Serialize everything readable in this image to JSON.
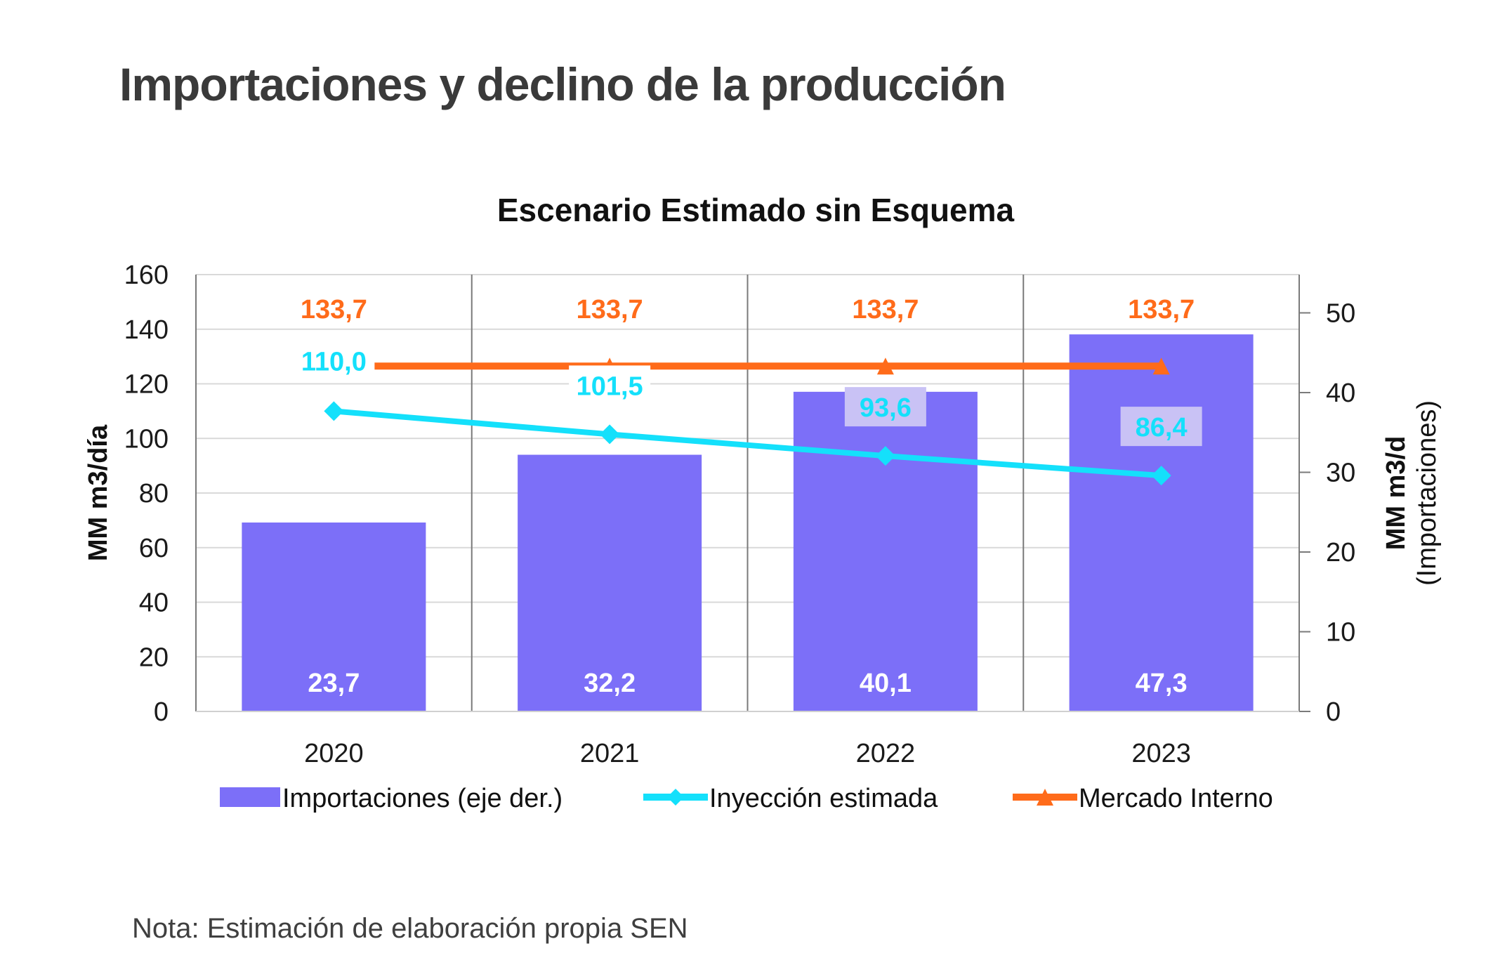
{
  "page": {
    "title": "Importaciones y declino de la producción",
    "note": "Nota: Estimación de elaboración propia SEN"
  },
  "colors": {
    "bars": "#7c6ff8",
    "inyeccion": "#14e0fb",
    "mercado": "#ff6b1a",
    "label_bg": "#c9c2f5"
  },
  "chart_data": {
    "type": "bar",
    "title": "Escenario Estimado sin Esquema",
    "categories": [
      "2020",
      "2021",
      "2022",
      "2023"
    ],
    "ylabel": "MM m3/día",
    "ylabel_right": [
      "MM m3/d",
      "(Importaciones)"
    ],
    "ylim": [
      0,
      160
    ],
    "yticks": [
      0,
      20,
      40,
      60,
      80,
      100,
      120,
      140,
      160
    ],
    "ylim_right": [
      0,
      54.8
    ],
    "yticks_right": [
      0,
      10,
      20,
      30,
      40,
      50
    ],
    "grid": true,
    "legend_position": "bottom",
    "series": [
      {
        "name": "Importaciones (eje der.)",
        "type": "bar",
        "axis": "right",
        "values": [
          23.7,
          32.2,
          40.1,
          47.3
        ],
        "labels": [
          "23,7",
          "32,2",
          "40,1",
          "47,3"
        ]
      },
      {
        "name": "Inyección estimada",
        "type": "line",
        "axis": "left",
        "marker": "diamond",
        "values": [
          110.0,
          101.5,
          93.6,
          86.4
        ],
        "labels": [
          "110,0",
          "101,5",
          "93,6",
          "86,4"
        ]
      },
      {
        "name": "Mercado Interno",
        "type": "line",
        "axis": "left",
        "marker": "triangle",
        "values": [
          133.7,
          133.7,
          133.7,
          133.7
        ],
        "labels": [
          "133,7",
          "133,7",
          "133,7",
          "133,7"
        ]
      }
    ]
  }
}
